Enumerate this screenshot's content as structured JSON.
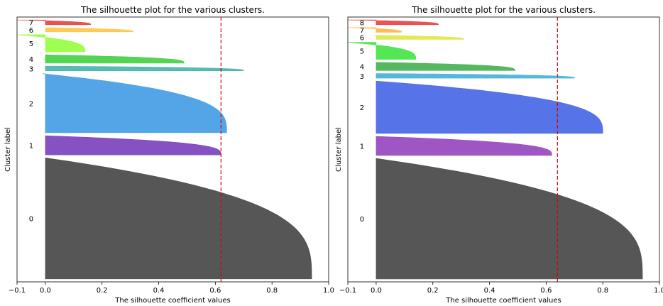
{
  "chart_data": [
    {
      "type": "silhouette",
      "title": "The silhouette plot for the various clusters.",
      "xlabel": "The silhouette coefficient values",
      "ylabel": "Cluster label",
      "xlim": [
        -0.1,
        1.0
      ],
      "xticks": [
        "−0.1",
        "0.0",
        "0.2",
        "0.4",
        "0.6",
        "0.8",
        "1.0"
      ],
      "xtick_values": [
        -0.1,
        0.0,
        0.2,
        0.4,
        0.6,
        0.8,
        1.0
      ],
      "grid": false,
      "average_silhouette": 0.62,
      "clusters": [
        {
          "label": "0",
          "size": 410,
          "max": 0.94,
          "min": 0.0,
          "color": "#4d4d4d"
        },
        {
          "label": "1",
          "size": 65,
          "max": 0.62,
          "min": 0.0,
          "color": "#7f48bf"
        },
        {
          "label": "2",
          "size": 200,
          "max": 0.64,
          "min": -0.01,
          "color": "#4aa0e6"
        },
        {
          "label": "3",
          "size": 16,
          "max": 0.7,
          "min": 0.0,
          "color": "#4cb7b0"
        },
        {
          "label": "4",
          "size": 28,
          "max": 0.49,
          "min": 0.0,
          "color": "#4cd14a"
        },
        {
          "label": "5",
          "size": 58,
          "max": 0.14,
          "min": -0.1,
          "color": "#99ff47"
        },
        {
          "label": "6",
          "size": 14,
          "max": 0.31,
          "min": 0.0,
          "color": "#ffc74d"
        },
        {
          "label": "7",
          "size": 16,
          "max": 0.16,
          "min": -0.1,
          "color": "#e84a4a"
        }
      ]
    },
    {
      "type": "silhouette",
      "title": "The silhouette plot for the various clusters.",
      "xlabel": "The silhouette coefficient values",
      "ylabel": "Cluster label",
      "xlim": [
        -0.1,
        1.0
      ],
      "xticks": [
        "−0.1",
        "0.0",
        "0.2",
        "0.4",
        "0.6",
        "0.8",
        "1.0"
      ],
      "xtick_values": [
        -0.1,
        0.0,
        0.2,
        0.4,
        0.6,
        0.8,
        1.0
      ],
      "grid": false,
      "average_silhouette": 0.64,
      "clusters": [
        {
          "label": "0",
          "size": 410,
          "max": 0.94,
          "min": 0.0,
          "color": "#4d4d4d"
        },
        {
          "label": "1",
          "size": 65,
          "max": 0.62,
          "min": 0.0,
          "color": "#9a4cc1"
        },
        {
          "label": "2",
          "size": 178,
          "max": 0.8,
          "min": 0.0,
          "color": "#4d6be6"
        },
        {
          "label": "3",
          "size": 16,
          "max": 0.7,
          "min": 0.0,
          "color": "#4cb4d6"
        },
        {
          "label": "4",
          "size": 28,
          "max": 0.49,
          "min": 0.0,
          "color": "#4cb457"
        },
        {
          "label": "5",
          "size": 58,
          "max": 0.14,
          "min": -0.1,
          "color": "#4be64b"
        },
        {
          "label": "6",
          "size": 14,
          "max": 0.31,
          "min": -0.01,
          "color": "#dfe84c"
        },
        {
          "label": "7",
          "size": 16,
          "max": 0.09,
          "min": -0.1,
          "color": "#ffb84a"
        },
        {
          "label": "8",
          "size": 16,
          "max": 0.22,
          "min": -0.1,
          "color": "#e84a4a"
        }
      ]
    }
  ]
}
